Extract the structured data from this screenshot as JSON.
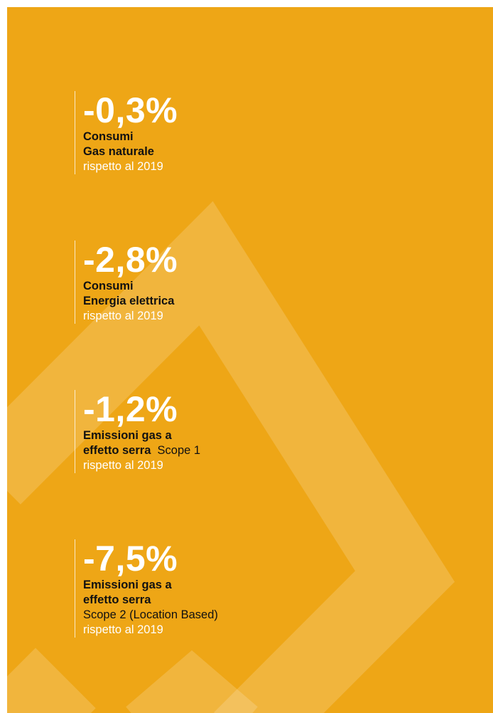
{
  "items": [
    {
      "value": "-0,3%",
      "lines": [
        [
          {
            "text": "Consumi",
            "bold": true
          }
        ],
        [
          {
            "text": "Gas naturale",
            "bold": true
          }
        ]
      ],
      "comparison": "rispetto al 2019"
    },
    {
      "value": "-2,8%",
      "lines": [
        [
          {
            "text": "Consumi",
            "bold": true
          }
        ],
        [
          {
            "text": "Energia elettrica",
            "bold": true
          }
        ]
      ],
      "comparison": "rispetto al 2019"
    },
    {
      "value": "-1,2%",
      "lines": [
        [
          {
            "text": "Emissioni gas a",
            "bold": true
          }
        ],
        [
          {
            "text": "effetto serra",
            "bold": true
          },
          {
            "text": "Scope 1",
            "bold": false
          }
        ]
      ],
      "comparison": "rispetto al 2019"
    },
    {
      "value": "-7,5%",
      "lines": [
        [
          {
            "text": "Emissioni gas a",
            "bold": true
          }
        ],
        [
          {
            "text": "effetto serra",
            "bold": true
          }
        ],
        [
          {
            "text": "Scope 2 (Location Based)",
            "bold": false
          }
        ]
      ],
      "comparison": "rispetto al 2019"
    }
  ]
}
